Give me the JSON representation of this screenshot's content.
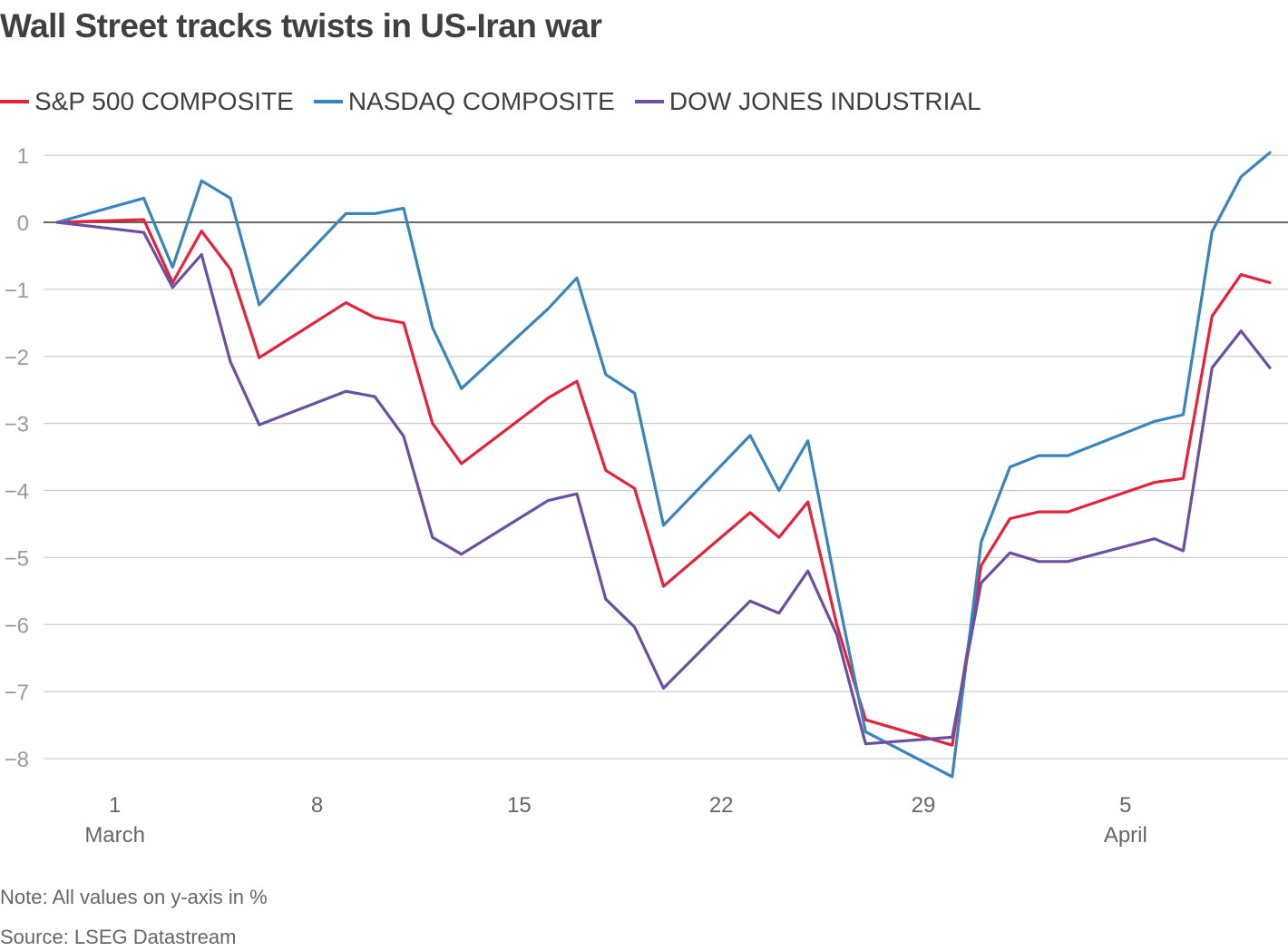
{
  "title": "Wall Street tracks twists in US-Iran war",
  "note": "Note: All values on y-axis in %",
  "source": "Source: LSEG Datastream",
  "chart_data": {
    "type": "line",
    "ylim": [
      -8.3,
      1.1
    ],
    "yticks": [
      1,
      0,
      -1,
      -2,
      -3,
      -4,
      -5,
      -6,
      -7,
      -8
    ],
    "ytick_labels": [
      "1",
      "0",
      "−1",
      "−2",
      "−3",
      "−4",
      "−5",
      "−6",
      "−7",
      "−8"
    ],
    "xticks": [
      {
        "label": "1",
        "sublabel": "March",
        "date": "2026-03-01"
      },
      {
        "label": "8",
        "sublabel": "",
        "date": "2026-03-08"
      },
      {
        "label": "15",
        "sublabel": "",
        "date": "2026-03-15"
      },
      {
        "label": "22",
        "sublabel": "",
        "date": "2026-03-22"
      },
      {
        "label": "29",
        "sublabel": "",
        "date": "2026-03-29"
      },
      {
        "label": "5",
        "sublabel": "April",
        "date": "2026-04-05"
      }
    ],
    "x": [
      "2026-02-27",
      "2026-03-02",
      "2026-03-03",
      "2026-03-04",
      "2026-03-05",
      "2026-03-06",
      "2026-03-09",
      "2026-03-10",
      "2026-03-11",
      "2026-03-12",
      "2026-03-13",
      "2026-03-16",
      "2026-03-17",
      "2026-03-18",
      "2026-03-19",
      "2026-03-20",
      "2026-03-23",
      "2026-03-24",
      "2026-03-25",
      "2026-03-26",
      "2026-03-27",
      "2026-03-30",
      "2026-03-31",
      "2026-04-01",
      "2026-04-02",
      "2026-04-03",
      "2026-04-06",
      "2026-04-07",
      "2026-04-08",
      "2026-04-09",
      "2026-04-10"
    ],
    "series": [
      {
        "name": "S&P 500 COMPOSITE",
        "color": "#e3233b",
        "values": [
          0,
          0.04,
          -0.9,
          -0.13,
          -0.7,
          -2.02,
          -1.2,
          -1.42,
          -1.5,
          -3.0,
          -3.6,
          -2.62,
          -2.37,
          -3.7,
          -3.97,
          -5.43,
          -4.33,
          -4.7,
          -4.17,
          -6.0,
          -7.42,
          -7.8,
          -5.12,
          -4.42,
          -4.32,
          -4.32,
          -3.88,
          -3.82,
          -1.4,
          -0.78,
          -0.9
        ]
      },
      {
        "name": "NASDAQ COMPOSITE",
        "color": "#3a84bd",
        "values": [
          0,
          0.36,
          -0.67,
          0.62,
          0.36,
          -1.23,
          0.13,
          0.13,
          0.21,
          -1.57,
          -2.48,
          -1.29,
          -0.83,
          -2.27,
          -2.55,
          -4.52,
          -3.18,
          -4.0,
          -3.26,
          -5.5,
          -7.6,
          -8.27,
          -4.77,
          -3.65,
          -3.48,
          -3.48,
          -2.97,
          -2.87,
          -0.14,
          0.68,
          1.04
        ]
      },
      {
        "name": "DOW JONES INDUSTRIAL",
        "color": "#6b4fa0",
        "values": [
          0,
          -0.15,
          -0.97,
          -0.48,
          -2.08,
          -3.02,
          -2.52,
          -2.6,
          -3.19,
          -4.7,
          -4.95,
          -4.15,
          -4.05,
          -5.62,
          -6.04,
          -6.95,
          -5.65,
          -5.83,
          -5.2,
          -6.15,
          -7.78,
          -7.68,
          -5.38,
          -4.93,
          -5.06,
          -5.06,
          -4.72,
          -4.9,
          -2.17,
          -1.62,
          -2.17
        ]
      }
    ],
    "grid": true,
    "legend": "top-left"
  }
}
